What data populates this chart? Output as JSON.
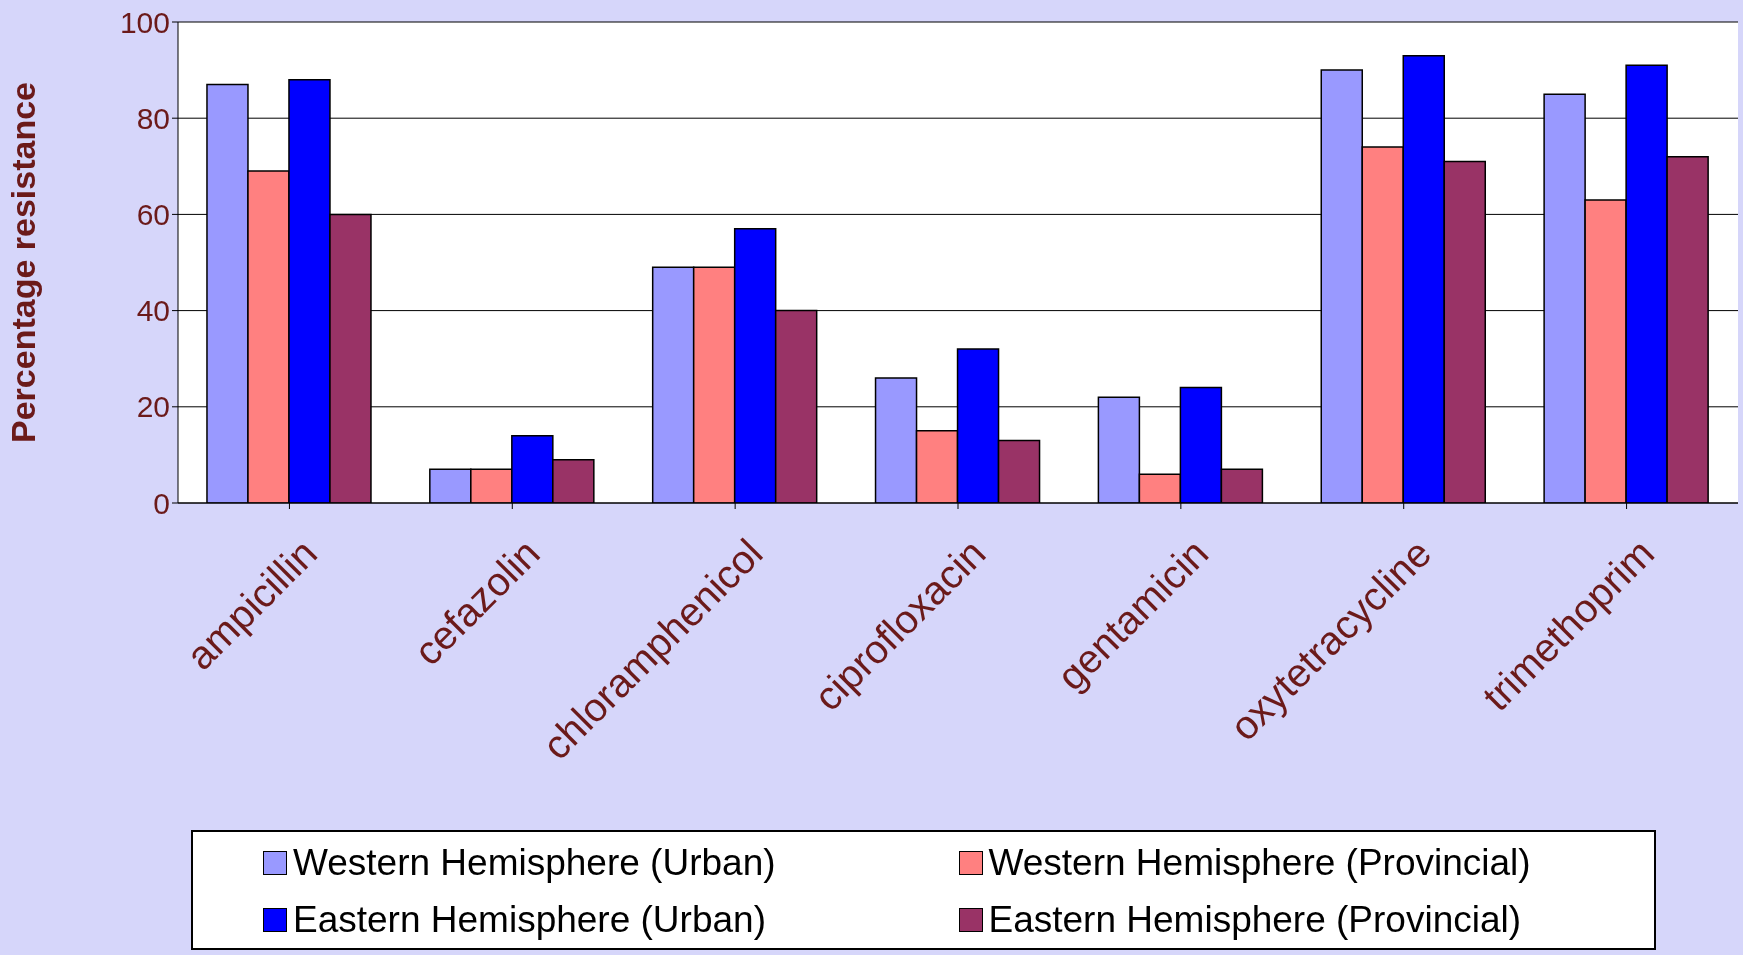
{
  "chart_data": {
    "type": "bar",
    "ylabel": "Percentage resistance",
    "categories": [
      "ampicillin",
      "cefazolin",
      "chloramphenicol",
      "ciprofloxacin",
      "gentamicin",
      "oxytetracycline",
      "trimethoprim"
    ],
    "series": [
      {
        "name": "Western Hemisphere (Urban)",
        "color": "#9999ff",
        "values": [
          87,
          7,
          49,
          26,
          22,
          90,
          85
        ]
      },
      {
        "name": "Western Hemisphere (Provincial)",
        "color": "#ff8080",
        "values": [
          69,
          7,
          49,
          15,
          6,
          74,
          63
        ]
      },
      {
        "name": "Eastern Hemisphere (Urban)",
        "color": "#0000ff",
        "values": [
          88,
          14,
          57,
          32,
          24,
          93,
          91
        ]
      },
      {
        "name": "Eastern Hemisphere (Provincial)",
        "color": "#993366",
        "values": [
          60,
          9,
          40,
          13,
          7,
          71,
          72
        ]
      }
    ],
    "ylim": [
      0,
      100
    ],
    "yticks": [
      0,
      20,
      40,
      60,
      80,
      100
    ],
    "grid": "y",
    "legend": "bottom"
  }
}
